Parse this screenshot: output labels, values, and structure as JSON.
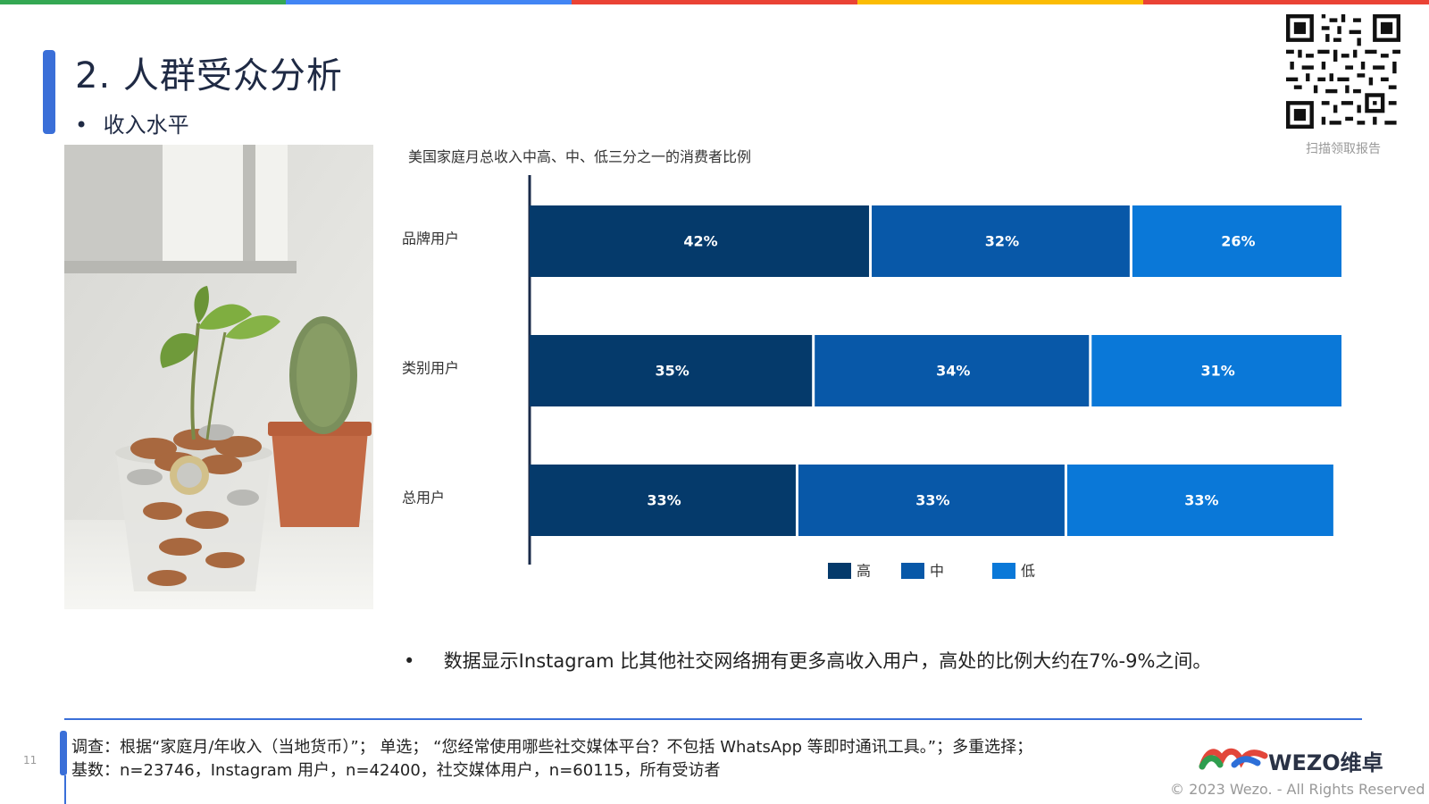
{
  "header": {
    "title": "2. 人群受众分析",
    "subtitle": "收入水平",
    "subtitle_bullet": "•",
    "qr_caption": "扫描领取报告"
  },
  "top_bar_colors": [
    "#34a853",
    "#4285f4",
    "#ea4335",
    "#fbbc04",
    "#ea4335"
  ],
  "chart_data": {
    "type": "bar",
    "orientation": "horizontal",
    "stacked": true,
    "title": "美国家庭月总收入中高、中、低三分之一的消费者比例",
    "categories": [
      "品牌用户",
      "类别用户",
      "总用户"
    ],
    "series": [
      {
        "name": "高",
        "values": [
          42,
          35,
          33
        ],
        "labels": [
          "42%",
          "35%",
          "33%"
        ],
        "color": "#053a6b"
      },
      {
        "name": "中",
        "values": [
          32,
          34,
          33
        ],
        "labels": [
          "32%",
          "34%",
          "33%"
        ],
        "color": "#0858a8"
      },
      {
        "name": "低",
        "values": [
          26,
          31,
          33
        ],
        "labels": [
          "26%",
          "31%",
          "33%"
        ],
        "color": "#0a78d8"
      }
    ],
    "xlim": [
      0,
      100
    ],
    "grid": false,
    "legend": "bottom"
  },
  "insight": {
    "bullet": "•",
    "text": "数据显示Instagram 比其他社交网络拥有更多高收入用户，高处的比例大约在7%-9%之间。"
  },
  "footer": {
    "page_number": "11",
    "survey_line": "调查：根据“家庭月/年收入（当地货币）”；  单选；  “您经常使用哪些社交媒体平台？不包括 WhatsApp 等即时通讯工具。”；多重选择；",
    "base_line": "基数：n=23746，Instagram 用户，n=42400，社交媒体用户，n=60115，所有受访者",
    "logo_text": "WEZO维卓",
    "copyright": "© 2023 Wezo. - All Rights Reserved"
  }
}
